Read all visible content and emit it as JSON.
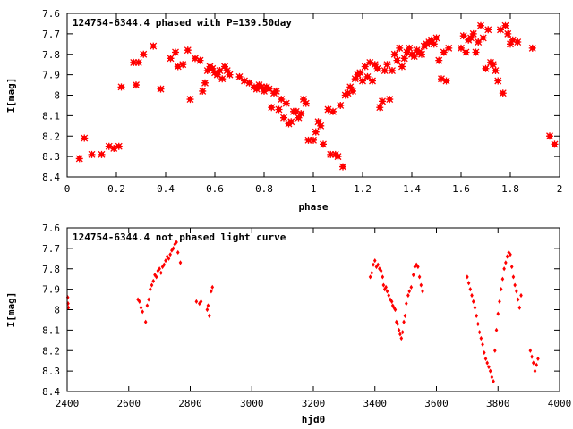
{
  "chart_data": [
    {
      "type": "scatter",
      "title": "124754-6344.4 phased with P=139.50day",
      "xlabel": "phase",
      "ylabel": "I[mag]",
      "xlim": [
        0,
        2
      ],
      "ylim": [
        8.4,
        7.6
      ],
      "y_inverted": true,
      "grid": false,
      "marker": "star",
      "color": "#ff0000",
      "xticks": [
        "0",
        "0.2",
        "0.4",
        "0.6",
        "0.8",
        "1",
        "1.2",
        "1.4",
        "1.6",
        "1.8",
        "2"
      ],
      "yticks": [
        "7.6",
        "7.7",
        "7.8",
        "7.9",
        "8",
        "8.1",
        "8.2",
        "8.3",
        "8.4"
      ],
      "series": [
        {
          "points": [
            [
              0.05,
              8.31
            ],
            [
              0.07,
              8.21
            ],
            [
              0.1,
              8.29
            ],
            [
              0.14,
              8.29
            ],
            [
              0.17,
              8.25
            ],
            [
              0.19,
              8.26
            ],
            [
              0.21,
              8.25
            ],
            [
              0.22,
              7.96
            ],
            [
              0.27,
              7.84
            ],
            [
              0.28,
              7.95
            ],
            [
              0.29,
              7.84
            ],
            [
              0.31,
              7.8
            ],
            [
              0.35,
              7.76
            ],
            [
              0.38,
              7.97
            ],
            [
              0.42,
              7.82
            ],
            [
              0.44,
              7.79
            ],
            [
              0.45,
              7.86
            ],
            [
              0.47,
              7.85
            ],
            [
              0.49,
              7.78
            ],
            [
              0.5,
              8.02
            ],
            [
              0.52,
              7.82
            ],
            [
              0.54,
              7.83
            ],
            [
              0.55,
              7.98
            ],
            [
              0.56,
              7.94
            ],
            [
              0.57,
              7.88
            ],
            [
              0.58,
              7.86
            ],
            [
              0.59,
              7.87
            ],
            [
              0.6,
              7.89
            ],
            [
              0.61,
              7.9
            ],
            [
              0.62,
              7.88
            ],
            [
              0.63,
              7.92
            ],
            [
              0.64,
              7.86
            ],
            [
              0.65,
              7.88
            ],
            [
              0.66,
              7.9
            ],
            [
              0.7,
              7.91
            ],
            [
              0.72,
              7.93
            ],
            [
              0.74,
              7.94
            ],
            [
              0.76,
              7.96
            ],
            [
              0.77,
              7.97
            ],
            [
              0.78,
              7.95
            ],
            [
              0.79,
              7.96
            ],
            [
              0.8,
              7.98
            ],
            [
              0.81,
              7.96
            ],
            [
              0.82,
              7.97
            ],
            [
              0.83,
              8.06
            ],
            [
              0.84,
              7.99
            ],
            [
              0.85,
              7.98
            ],
            [
              0.86,
              8.07
            ],
            [
              0.87,
              8.02
            ],
            [
              0.88,
              8.11
            ],
            [
              0.89,
              8.04
            ],
            [
              0.9,
              8.14
            ],
            [
              0.91,
              8.13
            ],
            [
              0.92,
              8.08
            ],
            [
              0.93,
              8.08
            ],
            [
              0.94,
              8.11
            ],
            [
              0.95,
              8.09
            ],
            [
              0.96,
              8.02
            ],
            [
              0.97,
              8.04
            ],
            [
              0.98,
              8.22
            ],
            [
              1.0,
              8.22
            ],
            [
              1.01,
              8.18
            ],
            [
              1.02,
              8.13
            ],
            [
              1.03,
              8.15
            ],
            [
              1.04,
              8.24
            ],
            [
              1.06,
              8.07
            ],
            [
              1.07,
              8.29
            ],
            [
              1.08,
              8.08
            ],
            [
              1.09,
              8.29
            ],
            [
              1.1,
              8.3
            ],
            [
              1.11,
              8.05
            ],
            [
              1.12,
              8.35
            ],
            [
              1.13,
              8.0
            ],
            [
              1.14,
              7.99
            ],
            [
              1.15,
              7.96
            ],
            [
              1.16,
              7.98
            ],
            [
              1.17,
              7.92
            ],
            [
              1.18,
              7.9
            ],
            [
              1.19,
              7.89
            ],
            [
              1.2,
              7.93
            ],
            [
              1.21,
              7.86
            ],
            [
              1.22,
              7.91
            ],
            [
              1.23,
              7.84
            ],
            [
              1.24,
              7.93
            ],
            [
              1.25,
              7.85
            ],
            [
              1.26,
              7.87
            ],
            [
              1.27,
              8.06
            ],
            [
              1.28,
              8.03
            ],
            [
              1.29,
              7.88
            ],
            [
              1.3,
              7.85
            ],
            [
              1.31,
              8.02
            ],
            [
              1.32,
              7.88
            ],
            [
              1.33,
              7.8
            ],
            [
              1.34,
              7.83
            ],
            [
              1.35,
              7.77
            ],
            [
              1.36,
              7.86
            ],
            [
              1.37,
              7.82
            ],
            [
              1.38,
              7.79
            ],
            [
              1.39,
              7.77
            ],
            [
              1.4,
              7.8
            ],
            [
              1.41,
              7.81
            ],
            [
              1.42,
              7.78
            ],
            [
              1.43,
              7.79
            ],
            [
              1.44,
              7.8
            ],
            [
              1.45,
              7.76
            ],
            [
              1.46,
              7.75
            ],
            [
              1.47,
              7.74
            ],
            [
              1.48,
              7.73
            ],
            [
              1.49,
              7.75
            ],
            [
              1.5,
              7.72
            ],
            [
              1.51,
              7.83
            ],
            [
              1.52,
              7.92
            ],
            [
              1.53,
              7.79
            ],
            [
              1.54,
              7.93
            ],
            [
              1.55,
              7.77
            ],
            [
              1.6,
              7.77
            ],
            [
              1.61,
              7.71
            ],
            [
              1.62,
              7.79
            ],
            [
              1.63,
              7.73
            ],
            [
              1.64,
              7.72
            ],
            [
              1.65,
              7.7
            ],
            [
              1.66,
              7.79
            ],
            [
              1.67,
              7.74
            ],
            [
              1.68,
              7.66
            ],
            [
              1.69,
              7.72
            ],
            [
              1.7,
              7.87
            ],
            [
              1.71,
              7.68
            ],
            [
              1.72,
              7.84
            ],
            [
              1.73,
              7.85
            ],
            [
              1.74,
              7.88
            ],
            [
              1.75,
              7.93
            ],
            [
              1.76,
              7.68
            ],
            [
              1.77,
              7.99
            ],
            [
              1.78,
              7.66
            ],
            [
              1.79,
              7.7
            ],
            [
              1.8,
              7.75
            ],
            [
              1.81,
              7.73
            ],
            [
              1.83,
              7.74
            ],
            [
              1.89,
              7.77
            ],
            [
              1.96,
              8.2
            ],
            [
              1.98,
              8.24
            ]
          ]
        }
      ]
    },
    {
      "type": "scatter",
      "title": "124754-6344.4 not phased light curve",
      "xlabel": "hjd0",
      "ylabel": "I[mag]",
      "xlim": [
        2400,
        4000
      ],
      "ylim": [
        8.4,
        7.6
      ],
      "y_inverted": true,
      "grid": false,
      "marker": "diamond",
      "color": "#ff0000",
      "xticks": [
        "2400",
        "2600",
        "2800",
        "3000",
        "3200",
        "3400",
        "3600",
        "3800",
        "4000"
      ],
      "yticks": [
        "7.6",
        "7.7",
        "7.8",
        "7.9",
        "8",
        "8.1",
        "8.2",
        "8.3",
        "8.4"
      ],
      "series": [
        {
          "points": [
            [
              2402,
              7.94
            ],
            [
              2403,
              7.97
            ],
            [
              2404,
              7.99
            ],
            [
              2630,
              7.95
            ],
            [
              2635,
              7.96
            ],
            [
              2640,
              7.99
            ],
            [
              2645,
              8.01
            ],
            [
              2655,
              8.06
            ],
            [
              2660,
              7.98
            ],
            [
              2665,
              7.95
            ],
            [
              2670,
              7.9
            ],
            [
              2675,
              7.88
            ],
            [
              2680,
              7.86
            ],
            [
              2685,
              7.83
            ],
            [
              2690,
              7.84
            ],
            [
              2695,
              7.81
            ],
            [
              2700,
              7.8
            ],
            [
              2705,
              7.82
            ],
            [
              2710,
              7.79
            ],
            [
              2715,
              7.78
            ],
            [
              2720,
              7.76
            ],
            [
              2725,
              7.74
            ],
            [
              2730,
              7.75
            ],
            [
              2735,
              7.73
            ],
            [
              2740,
              7.71
            ],
            [
              2745,
              7.7
            ],
            [
              2750,
              7.68
            ],
            [
              2755,
              7.67
            ],
            [
              2760,
              7.72
            ],
            [
              2768,
              7.77
            ],
            [
              2820,
              7.96
            ],
            [
              2830,
              7.97
            ],
            [
              2835,
              7.96
            ],
            [
              2855,
              8.0
            ],
            [
              2858,
              7.98
            ],
            [
              2862,
              8.03
            ],
            [
              2868,
              7.91
            ],
            [
              2872,
              7.89
            ],
            [
              3385,
              7.84
            ],
            [
              3390,
              7.82
            ],
            [
              3395,
              7.78
            ],
            [
              3400,
              7.76
            ],
            [
              3405,
              7.79
            ],
            [
              3410,
              7.78
            ],
            [
              3415,
              7.8
            ],
            [
              3420,
              7.81
            ],
            [
              3425,
              7.84
            ],
            [
              3428,
              7.88
            ],
            [
              3432,
              7.9
            ],
            [
              3436,
              7.89
            ],
            [
              3440,
              7.91
            ],
            [
              3445,
              7.93
            ],
            [
              3450,
              7.95
            ],
            [
              3455,
              7.96
            ],
            [
              3458,
              7.98
            ],
            [
              3462,
              7.99
            ],
            [
              3466,
              8.0
            ],
            [
              3470,
              8.06
            ],
            [
              3474,
              8.07
            ],
            [
              3478,
              8.1
            ],
            [
              3482,
              8.12
            ],
            [
              3486,
              8.14
            ],
            [
              3490,
              8.11
            ],
            [
              3494,
              8.06
            ],
            [
              3498,
              8.03
            ],
            [
              3502,
              7.97
            ],
            [
              3508,
              7.93
            ],
            [
              3512,
              7.91
            ],
            [
              3518,
              7.89
            ],
            [
              3525,
              7.83
            ],
            [
              3530,
              7.79
            ],
            [
              3535,
              7.78
            ],
            [
              3540,
              7.79
            ],
            [
              3545,
              7.84
            ],
            [
              3550,
              7.88
            ],
            [
              3555,
              7.91
            ],
            [
              3700,
              7.84
            ],
            [
              3705,
              7.87
            ],
            [
              3710,
              7.9
            ],
            [
              3715,
              7.93
            ],
            [
              3720,
              7.96
            ],
            [
              3725,
              7.99
            ],
            [
              3730,
              8.03
            ],
            [
              3735,
              8.07
            ],
            [
              3740,
              8.11
            ],
            [
              3745,
              8.14
            ],
            [
              3750,
              8.17
            ],
            [
              3755,
              8.21
            ],
            [
              3760,
              8.24
            ],
            [
              3765,
              8.26
            ],
            [
              3770,
              8.28
            ],
            [
              3775,
              8.3
            ],
            [
              3780,
              8.33
            ],
            [
              3785,
              8.35
            ],
            [
              3790,
              8.2
            ],
            [
              3795,
              8.1
            ],
            [
              3800,
              8.02
            ],
            [
              3805,
              7.96
            ],
            [
              3810,
              7.9
            ],
            [
              3815,
              7.85
            ],
            [
              3820,
              7.8
            ],
            [
              3825,
              7.77
            ],
            [
              3830,
              7.74
            ],
            [
              3835,
              7.72
            ],
            [
              3840,
              7.73
            ],
            [
              3845,
              7.79
            ],
            [
              3850,
              7.84
            ],
            [
              3855,
              7.88
            ],
            [
              3860,
              7.91
            ],
            [
              3865,
              7.95
            ],
            [
              3870,
              7.99
            ],
            [
              3875,
              7.93
            ],
            [
              3905,
              8.2
            ],
            [
              3910,
              8.23
            ],
            [
              3915,
              8.26
            ],
            [
              3920,
              8.3
            ],
            [
              3925,
              8.27
            ],
            [
              3930,
              8.24
            ]
          ]
        }
      ]
    }
  ]
}
